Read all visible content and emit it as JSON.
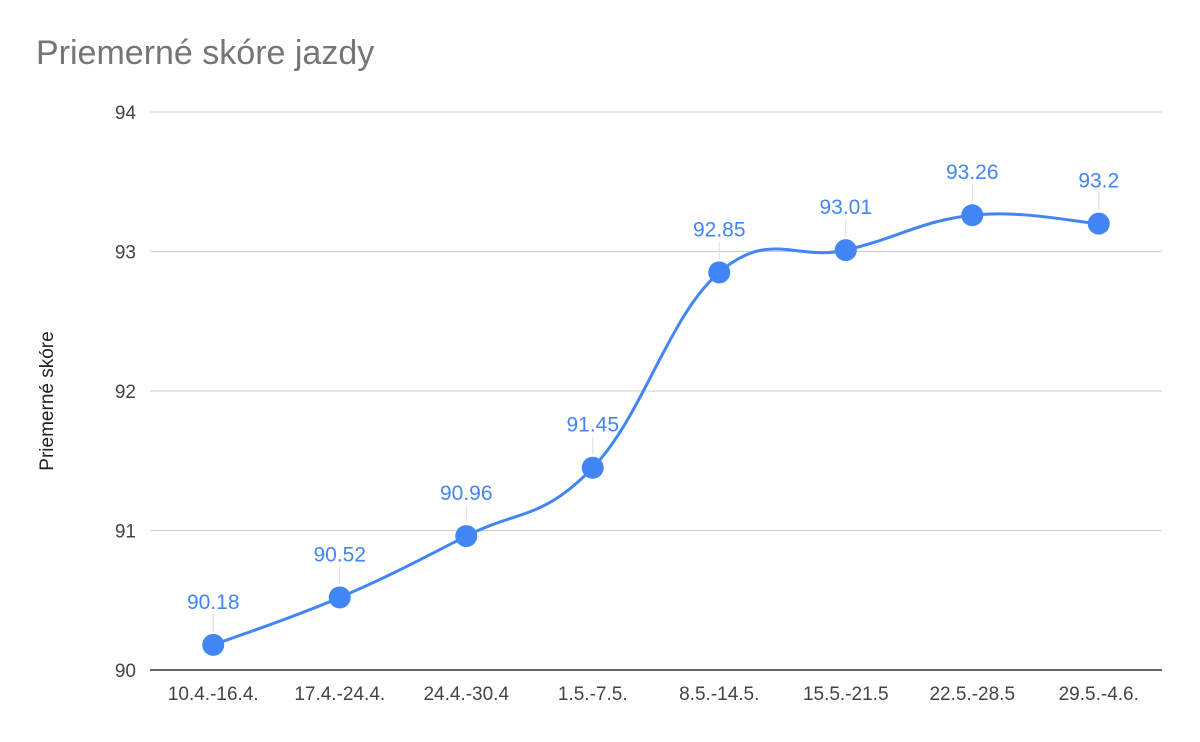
{
  "chart_data": {
    "type": "line",
    "title": "Priemerné skóre jazdy",
    "xlabel": "",
    "ylabel": "Priemerné skóre",
    "categories": [
      "10.4.-16.4.",
      "17.4.-24.4.",
      "24.4.-30.4",
      "1.5.-7.5.",
      "8.5.-14.5.",
      "15.5.-21.5",
      "22.5.-28.5",
      "29.5.-4.6."
    ],
    "series": [
      {
        "values": [
          90.18,
          90.52,
          90.96,
          91.45,
          92.85,
          93.01,
          93.26,
          93.2
        ],
        "labels": [
          "90.18",
          "90.52",
          "90.96",
          "91.45",
          "92.85",
          "93.01",
          "93.26",
          "93.2"
        ]
      }
    ],
    "ylim": [
      90,
      94
    ],
    "yticks": [
      "90",
      "91",
      "92",
      "93",
      "94"
    ],
    "grid": true,
    "smooth": true,
    "data_labels": true,
    "colors": {
      "series": "#4285f4",
      "grid": "#cccccc",
      "axis": "#333333",
      "title": "#757575"
    }
  }
}
